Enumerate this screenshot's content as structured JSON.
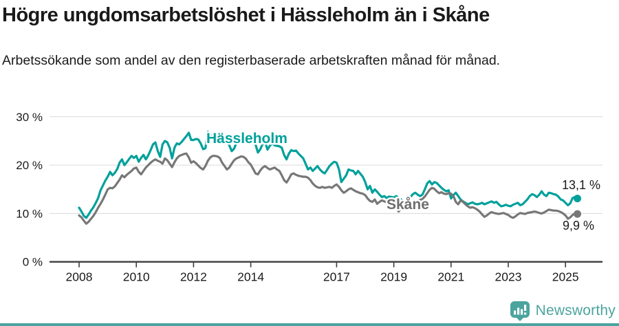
{
  "header": {
    "title": "Högre ungdomsarbetslöshet i Hässleholm än i Skåne",
    "subtitle": "Arbetssökande som andel av den registerbaserade arbetskraften månad för månad."
  },
  "footer": {
    "brand": "Newsworthy"
  },
  "colors": {
    "accent_teal": "#00A09B",
    "series_gray": "#777777",
    "grid": "#D9D9D9",
    "axis": "#3C3C3C",
    "text": "#1a1a1a",
    "logo_teal": "#4BA49E"
  },
  "chart_data": {
    "type": "line",
    "title": "Högre ungdomsarbetslöshet i Hässleholm än i Skåne",
    "subtitle": "Arbetssökande som andel av den registerbaserade arbetskraften månad för månad.",
    "unit": "%",
    "frequency": "monthly",
    "x_start": "2008-01",
    "x_end": "2025-06",
    "grid": "horizontal",
    "legend_position": "inline-labels",
    "ylim": [
      0,
      31
    ],
    "x_tick_labels": [
      "2008",
      "2010",
      "2012",
      "2014",
      "2017",
      "2019",
      "2021",
      "2023",
      "2025"
    ],
    "x_tick_years": [
      2008,
      2010,
      2012,
      2014,
      2017,
      2019,
      2021,
      2023,
      2025
    ],
    "y_tick_values": [
      0,
      10,
      20,
      30
    ],
    "y_tick_labels": [
      "0 %",
      "10 %",
      "20 %",
      "30 %"
    ],
    "series": [
      {
        "name": "Hässleholm",
        "color": "#00A09B",
        "end_value": 13.1,
        "end_label": "13,1 %",
        "values": [
          11.2,
          10.4,
          9.5,
          9.1,
          9.8,
          10.6,
          11.3,
          12.2,
          13.2,
          14.8,
          15.8,
          16.8,
          17.6,
          18.6,
          17.9,
          18.4,
          19.2,
          20.5,
          21.2,
          20.0,
          20.6,
          21.3,
          21.9,
          21.5,
          21.9,
          20.7,
          21.5,
          22.1,
          21.2,
          22.0,
          23.1,
          24.3,
          24.7,
          22.9,
          21.7,
          24.3,
          25.0,
          24.7,
          23.6,
          21.4,
          23.6,
          24.5,
          24.3,
          24.8,
          25.4,
          26.0,
          26.7,
          25.2,
          25.2,
          25.4,
          25.3,
          24.5,
          23.3,
          23.5,
          26.9,
          26.3,
          25.6,
          25.8,
          26.1,
          25.4,
          26.3,
          25.8,
          25.2,
          24.1,
          22.9,
          23.4,
          24.6,
          25.3,
          25.7,
          25.4,
          25.0,
          25.3,
          25.5,
          25.0,
          24.3,
          22.6,
          23.3,
          24.4,
          24.9,
          23.2,
          24.0,
          24.5,
          24.1,
          24.0,
          23.9,
          23.6,
          22.1,
          21.2,
          22.4,
          23.1,
          22.9,
          23.0,
          22.4,
          21.9,
          21.4,
          20.3,
          19.1,
          19.5,
          18.8,
          19.3,
          19.8,
          19.1,
          18.6,
          18.3,
          19.0,
          19.8,
          20.3,
          20.7,
          20.5,
          19.1,
          16.5,
          17.2,
          17.9,
          19.1,
          18.9,
          18.8,
          18.1,
          18.8,
          18.2,
          17.6,
          16.5,
          15.0,
          15.7,
          14.3,
          15.0,
          14.5,
          13.9,
          13.4,
          13.6,
          13.2,
          13.5,
          13.4,
          13.3,
          13.6,
          13.2,
          12.9,
          12.5,
          12.3,
          12.8,
          13.4,
          14.0,
          14.3,
          13.9,
          13.6,
          13.9,
          15.0,
          16.2,
          16.7,
          16.0,
          16.5,
          16.3,
          15.8,
          15.3,
          14.9,
          14.6,
          14.8,
          13.1,
          13.8,
          14.3,
          13.6,
          12.9,
          12.5,
          12.2,
          11.9,
          12.1,
          12.3,
          12.0,
          11.9,
          12.0,
          12.2,
          11.9,
          12.1,
          12.3,
          12.5,
          12.2,
          12.4,
          11.9,
          11.5,
          11.6,
          11.8,
          11.6,
          11.5,
          11.8,
          12.0,
          12.2,
          11.7,
          11.9,
          12.4,
          12.9,
          13.6,
          14.0,
          13.8,
          13.4,
          13.9,
          14.6,
          13.9,
          13.6,
          14.3,
          14.2,
          14.0,
          13.9,
          13.5,
          12.9,
          12.7,
          12.2,
          11.7,
          12.1,
          13.2,
          13.4,
          13.1
        ]
      },
      {
        "name": "Skåne",
        "color": "#777777",
        "end_value": 9.9,
        "end_label": "9,9 %",
        "values": [
          9.6,
          9.2,
          8.5,
          7.9,
          8.3,
          8.9,
          9.5,
          10.3,
          11.2,
          12.0,
          12.9,
          13.9,
          15.0,
          15.3,
          15.2,
          15.6,
          16.3,
          17.0,
          17.9,
          17.5,
          18.0,
          18.4,
          18.8,
          19.3,
          19.5,
          18.6,
          18.1,
          18.8,
          19.5,
          20.0,
          20.5,
          20.9,
          21.2,
          20.9,
          20.7,
          20.3,
          21.4,
          21.0,
          20.3,
          19.6,
          20.6,
          21.4,
          21.9,
          22.1,
          22.3,
          22.4,
          21.6,
          20.5,
          20.8,
          20.4,
          19.9,
          19.4,
          19.1,
          19.8,
          20.9,
          21.6,
          21.9,
          21.9,
          21.8,
          21.5,
          20.5,
          19.8,
          19.1,
          19.5,
          20.3,
          21.0,
          21.4,
          21.6,
          21.8,
          21.7,
          21.3,
          20.6,
          20.1,
          19.2,
          18.3,
          18.1,
          18.9,
          19.5,
          19.8,
          19.4,
          19.1,
          19.3,
          19.5,
          19.1,
          18.8,
          17.9,
          16.9,
          16.4,
          17.2,
          18.1,
          18.3,
          18.0,
          17.8,
          17.7,
          17.6,
          17.6,
          17.4,
          16.9,
          16.2,
          15.7,
          15.4,
          15.3,
          15.5,
          15.3,
          15.4,
          15.5,
          15.3,
          15.7,
          16.0,
          15.5,
          14.8,
          14.3,
          14.6,
          15.0,
          15.2,
          14.9,
          14.6,
          14.4,
          14.2,
          14.1,
          13.8,
          13.1,
          12.6,
          12.4,
          12.9,
          12.0,
          12.4,
          12.7,
          12.5,
          12.3,
          12.2,
          12.3,
          12.3,
          11.4,
          10.4,
          10.9,
          11.4,
          11.8,
          12.0,
          12.1,
          12.3,
          12.4,
          12.6,
          12.8,
          13.0,
          13.5,
          14.2,
          14.9,
          15.3,
          15.1,
          14.6,
          14.2,
          14.4,
          14.1,
          14.0,
          14.2,
          14.1,
          13.6,
          12.4,
          11.9,
          12.7,
          12.4,
          11.9,
          11.5,
          11.2,
          11.3,
          11.1,
          10.8,
          10.4,
          9.8,
          9.3,
          9.6,
          10.0,
          10.3,
          10.1,
          10.0,
          9.9,
          10.0,
          10.1,
          9.9,
          9.7,
          9.3,
          9.1,
          9.4,
          9.8,
          10.1,
          10.0,
          9.9,
          10.1,
          10.2,
          10.3,
          10.4,
          10.3,
          10.1,
          10.0,
          10.2,
          10.5,
          10.8,
          10.7,
          10.6,
          10.6,
          10.5,
          10.3,
          10.0,
          9.6,
          8.9,
          9.2,
          9.7,
          10.0,
          9.9
        ]
      }
    ]
  }
}
